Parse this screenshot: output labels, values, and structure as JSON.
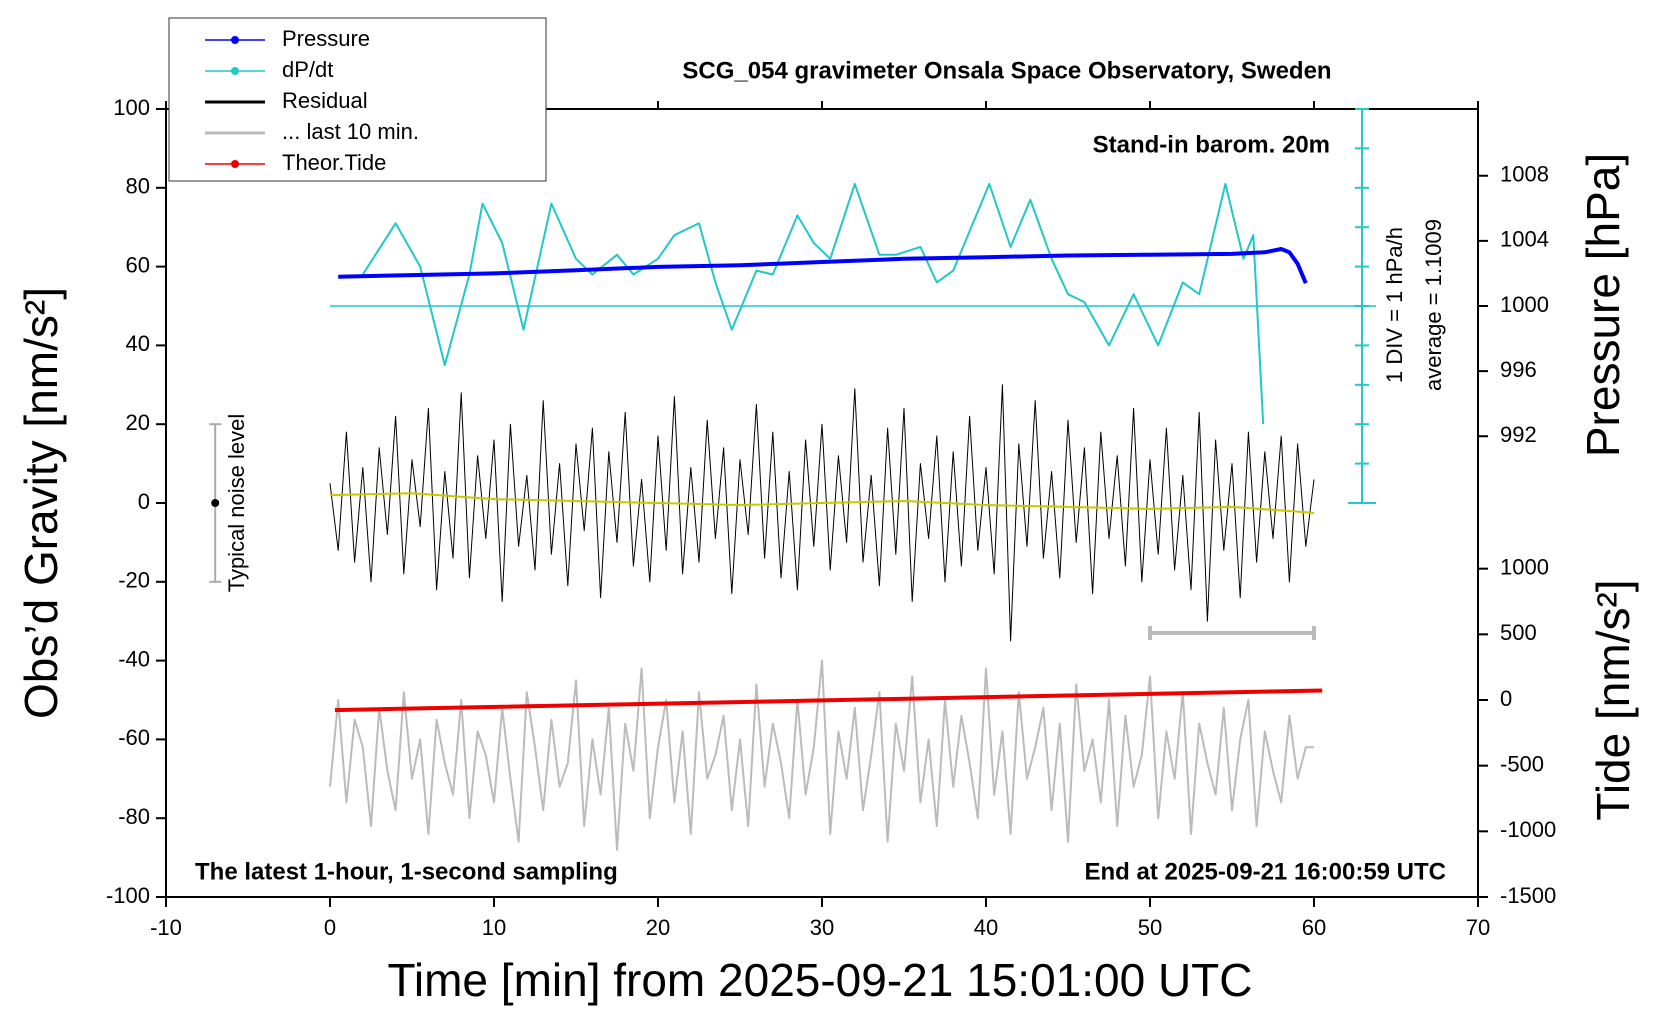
{
  "chart_data": {
    "type": "line",
    "title": "SCG_054 gravimeter Onsala Space Observatory, Sweden",
    "subtitle": "Stand-in barom. 20m",
    "annotations": [
      "The latest 1-hour, 1-second sampling",
      "End at 2025-09-21 16:00:59 UTC"
    ],
    "xlabel": "Time [min] from 2025-09-21 15:01:00 UTC",
    "ylabel": "Obs’d Gravity [nm/s²]",
    "y2label": "Pressure [hPa]",
    "y3label": "Tide [nm/s²]",
    "y4label": "1 DIV = 1 hPa/h",
    "xlim": [
      -10,
      70
    ],
    "xticks": [
      -10,
      0,
      10,
      20,
      30,
      40,
      50,
      60,
      70
    ],
    "ylim": [
      -100,
      100
    ],
    "yticks": [
      -100,
      -80,
      -60,
      -40,
      -20,
      0,
      20,
      40,
      60,
      80,
      100
    ],
    "y2lim": [
      987.9,
      1012.1
    ],
    "y2ticks": [
      992,
      996,
      1000,
      1004,
      1008
    ],
    "y3lim": [
      -1500,
      1500
    ],
    "y3ticks": [
      -1500,
      -1000,
      -500,
      0,
      500,
      1000
    ],
    "y4lim": [
      -3.8991,
      6.1009
    ],
    "dpdt_average": {
      "value": 1.1009,
      "label": "average = 1.1009"
    },
    "noise_level": {
      "label": "Typical noise level",
      "x": -7,
      "value": 0,
      "error": 20
    },
    "last10_span": {
      "x": [
        50,
        60
      ],
      "y": -33
    },
    "legend": "upper left",
    "x": [
      0,
      0.5,
      1,
      1.5,
      2,
      2.5,
      3,
      3.5,
      4,
      4.5,
      5,
      5.5,
      6,
      6.5,
      7,
      7.5,
      8,
      8.5,
      9,
      9.5,
      10,
      10.5,
      11,
      11.5,
      12,
      12.5,
      13,
      13.5,
      14,
      14.5,
      15,
      15.5,
      16,
      16.5,
      17,
      17.5,
      18,
      18.5,
      19,
      19.5,
      20,
      20.5,
      21,
      21.5,
      22,
      22.5,
      23,
      23.5,
      24,
      24.5,
      25,
      25.5,
      26,
      26.5,
      27,
      27.5,
      28,
      28.5,
      29,
      29.5,
      30,
      30.5,
      31,
      31.5,
      32,
      32.5,
      33,
      33.5,
      34,
      34.5,
      35,
      35.5,
      36,
      36.5,
      37,
      37.5,
      38,
      38.5,
      39,
      39.5,
      40,
      40.5,
      41,
      41.5,
      42,
      42.5,
      43,
      43.5,
      44,
      44.5,
      45,
      45.5,
      46,
      46.5,
      47,
      47.5,
      48,
      48.5,
      49,
      49.5,
      50,
      50.5,
      51,
      51.5,
      52,
      52.5,
      53,
      53.5,
      54,
      54.5,
      55,
      55.5,
      56,
      56.5,
      57,
      57.5,
      58,
      58.5,
      59,
      59.5,
      60
    ],
    "series": [
      {
        "name": "Pressure",
        "color": "#0000ff",
        "axis": "y2",
        "marker": true,
        "width": 4,
        "x": [
          0.5,
          5,
          10,
          15,
          20,
          25,
          30,
          35,
          40,
          45,
          50,
          55,
          57,
          58,
          58.5,
          59,
          59.5
        ],
        "values": [
          1001.8,
          1001.9,
          1002.0,
          1002.2,
          1002.4,
          1002.5,
          1002.7,
          1002.9,
          1003.0,
          1003.1,
          1003.15,
          1003.2,
          1003.3,
          1003.5,
          1003.3,
          1002.6,
          1001.4
        ]
      },
      {
        "name": "dP/dt",
        "color": "#20c8c8",
        "axis": "y4",
        "marker": true,
        "width": 2,
        "x": [
          2,
          4,
          5.5,
          7,
          8.5,
          9.3,
          10.5,
          11.8,
          13.5,
          15,
          16,
          17.5,
          18.5,
          20,
          21,
          22.5,
          23.5,
          24.5,
          26,
          27,
          28.5,
          29.5,
          30.5,
          32,
          33.5,
          34.5,
          36,
          37,
          38,
          40.2,
          41.5,
          42.7,
          44,
          45,
          46,
          47.5,
          49,
          50.5,
          52,
          53,
          54.6,
          55.7,
          56.3,
          56.9
        ],
        "values": [
          1.9,
          3.2,
          2.1,
          -0.4,
          1.9,
          3.7,
          2.7,
          0.5,
          3.7,
          2.3,
          1.9,
          2.4,
          1.9,
          2.3,
          2.9,
          3.2,
          1.7,
          0.5,
          2.0,
          1.9,
          3.4,
          2.7,
          2.3,
          4.2,
          2.4,
          2.4,
          2.6,
          1.7,
          2.0,
          4.2,
          2.6,
          3.8,
          2.3,
          1.4,
          1.2,
          0.1,
          1.4,
          0.1,
          1.7,
          1.4,
          4.2,
          2.3,
          2.9,
          -1.9
        ]
      },
      {
        "name": "Residual",
        "color": "#000000",
        "axis": "y",
        "marker": false,
        "width": 1,
        "values": [
          5,
          -12,
          18,
          -15,
          9,
          -20,
          14,
          -8,
          22,
          -18,
          11,
          -6,
          24,
          -22,
          8,
          -14,
          28,
          -19,
          12,
          -9,
          16,
          -25,
          20,
          -11,
          7,
          -17,
          26,
          -13,
          10,
          -21,
          15,
          -7,
          19,
          -24,
          13,
          -10,
          23,
          -16,
          6,
          -20,
          17,
          -12,
          27,
          -18,
          9,
          -15,
          21,
          -9,
          14,
          -23,
          11,
          -8,
          25,
          -14,
          18,
          -19,
          8,
          -22,
          16,
          -11,
          20,
          -17,
          12,
          -10,
          29,
          -15,
          7,
          -21,
          19,
          -13,
          24,
          -25,
          10,
          -9,
          17,
          -20,
          13,
          -16,
          22,
          -12,
          9,
          -18,
          30,
          -35,
          15,
          -11,
          26,
          -14,
          8,
          -19,
          21,
          -10,
          14,
          -23,
          18,
          -9,
          12,
          -16,
          24,
          -20,
          11,
          -13,
          19,
          -17,
          7,
          -22,
          23,
          -30,
          16,
          -12,
          10,
          -24,
          18,
          -15,
          13,
          -9,
          17,
          -20,
          15,
          -11,
          6
        ]
      },
      {
        "name": "... last 10 min.",
        "color": "#bbbbbb",
        "axis": "y",
        "marker": false,
        "width": 2,
        "values": [
          -72,
          -50,
          -76,
          -55,
          -62,
          -82,
          -52,
          -68,
          -78,
          -48,
          -70,
          -60,
          -84,
          -55,
          -66,
          -74,
          -50,
          -80,
          -58,
          -64,
          -76,
          -52,
          -70,
          -86,
          -48,
          -62,
          -78,
          -55,
          -72,
          -66,
          -45,
          -82,
          -60,
          -74,
          -52,
          -88,
          -56,
          -68,
          -42,
          -80,
          -62,
          -50,
          -76,
          -58,
          -84,
          -48,
          -70,
          -64,
          -54,
          -78,
          -60,
          -82,
          -46,
          -72,
          -56,
          -66,
          -80,
          -50,
          -74,
          -62,
          -40,
          -84,
          -58,
          -70,
          -52,
          -78,
          -64,
          -48,
          -86,
          -56,
          -68,
          -44,
          -76,
          -60,
          -82,
          -50,
          -72,
          -54,
          -66,
          -80,
          -42,
          -74,
          -58,
          -84,
          -48,
          -70,
          -62,
          -52,
          -78,
          -56,
          -86,
          -46,
          -68,
          -60,
          -76,
          -50,
          -82,
          -54,
          -72,
          -64,
          -44,
          -80,
          -58,
          -70,
          -48,
          -84,
          -56,
          -66,
          -74,
          -52,
          -78,
          -60,
          -50,
          -82,
          -58,
          -68,
          -76,
          -54,
          -70,
          -62,
          -62
        ]
      },
      {
        "name": "Theor.Tide",
        "color": "#ee0000",
        "axis": "y3",
        "marker": true,
        "width": 4,
        "x": [
          0.3,
          30,
          60.5
        ],
        "values": [
          -77,
          -3,
          72
        ]
      },
      {
        "color": "#c8c800",
        "axis": "y",
        "marker": false,
        "width": 2,
        "x": [
          0,
          5,
          10,
          15,
          20,
          25,
          30,
          35,
          40,
          45,
          50,
          55,
          60
        ],
        "values": [
          2,
          2.5,
          1,
          0.5,
          0,
          -0.5,
          0,
          0.5,
          -0.5,
          -1,
          -1.5,
          -1,
          -2.5
        ]
      }
    ]
  }
}
